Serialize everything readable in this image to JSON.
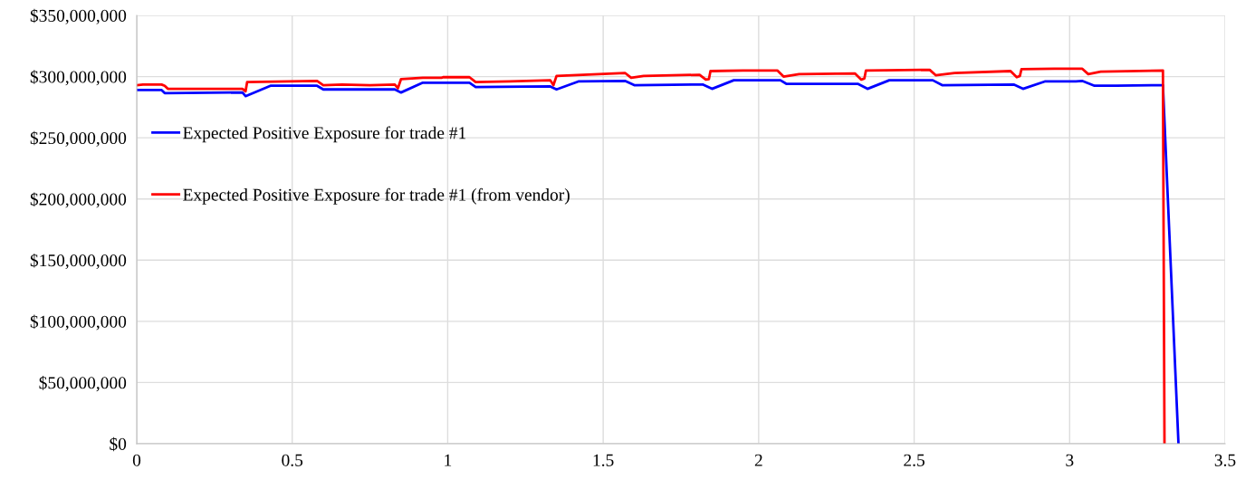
{
  "chart_data": {
    "type": "line",
    "series": [
      {
        "name": "Expected Positive Exposure for trade #1",
        "color": "#0000ff",
        "x": [
          0,
          0.08,
          0.09,
          0.34,
          0.35,
          0.43,
          0.58,
          0.6,
          0.83,
          0.85,
          0.92,
          1.07,
          1.09,
          1.33,
          1.35,
          1.42,
          1.57,
          1.6,
          1.82,
          1.85,
          1.92,
          2.07,
          2.09,
          2.32,
          2.35,
          2.42,
          2.56,
          2.59,
          2.82,
          2.85,
          2.92,
          3.02,
          3.04,
          3.08,
          3.15,
          3.3,
          3.35
        ],
        "values": [
          289000000,
          289000000,
          286500000,
          287000000,
          284000000,
          292500000,
          292500000,
          289500000,
          289500000,
          287000000,
          295000000,
          295000000,
          291500000,
          292000000,
          289500000,
          296000000,
          296500000,
          293000000,
          293500000,
          290000000,
          297000000,
          297000000,
          294000000,
          294000000,
          290000000,
          297000000,
          297000000,
          293000000,
          293500000,
          290000000,
          296000000,
          296000000,
          296500000,
          292500000,
          292500000,
          293000000,
          0
        ]
      },
      {
        "name": "Expected Positive Exposure for trade #1 (from vendor)",
        "color": "#ff0000",
        "x": [
          0,
          0.02,
          0.08,
          0.09,
          0.1,
          0.34,
          0.35,
          0.355,
          0.58,
          0.6,
          0.66,
          0.75,
          0.83,
          0.84,
          0.85,
          0.92,
          0.98,
          0.985,
          1.07,
          1.09,
          1.2,
          1.33,
          1.34,
          1.35,
          1.57,
          1.59,
          1.63,
          1.81,
          1.83,
          1.84,
          1.845,
          1.95,
          2.06,
          2.08,
          2.13,
          2.31,
          2.33,
          2.34,
          2.345,
          2.55,
          2.57,
          2.63,
          2.81,
          2.83,
          2.84,
          2.845,
          2.95,
          3.04,
          3.06,
          3.1,
          3.3,
          3.305
        ],
        "values": [
          293000000,
          293500000,
          293500000,
          292500000,
          290000000,
          290000000,
          288000000,
          295500000,
          296500000,
          293000000,
          293500000,
          293000000,
          293500000,
          290500000,
          298000000,
          299000000,
          299000000,
          299500000,
          299500000,
          295500000,
          296000000,
          297000000,
          293000000,
          300500000,
          303000000,
          299000000,
          300500000,
          301500000,
          297500000,
          298000000,
          304500000,
          305000000,
          305000000,
          300000000,
          302000000,
          302500000,
          297500000,
          298500000,
          305000000,
          305500000,
          301000000,
          303000000,
          304500000,
          299500000,
          300500000,
          306000000,
          306500000,
          306500000,
          302000000,
          304000000,
          305000000,
          0
        ]
      }
    ],
    "xlim": [
      0,
      3.5
    ],
    "xticks": [
      0,
      0.5,
      1,
      1.5,
      2,
      2.5,
      3,
      3.5
    ],
    "ylim": [
      0,
      350000000
    ],
    "yticks": [
      {
        "value": 0,
        "label": "$0"
      },
      {
        "value": 50000000,
        "label": "$50,000,000"
      },
      {
        "value": 100000000,
        "label": "$100,000,000"
      },
      {
        "value": 150000000,
        "label": "$150,000,000"
      },
      {
        "value": 200000000,
        "label": "$200,000,000"
      },
      {
        "value": 250000000,
        "label": "$250,000,000"
      },
      {
        "value": 300000000,
        "label": "$300,000,000"
      },
      {
        "value": 350000000,
        "label": "$350,000,000"
      }
    ],
    "grid": true,
    "legend": "center left",
    "marker": "none",
    "line_style": "solid"
  }
}
